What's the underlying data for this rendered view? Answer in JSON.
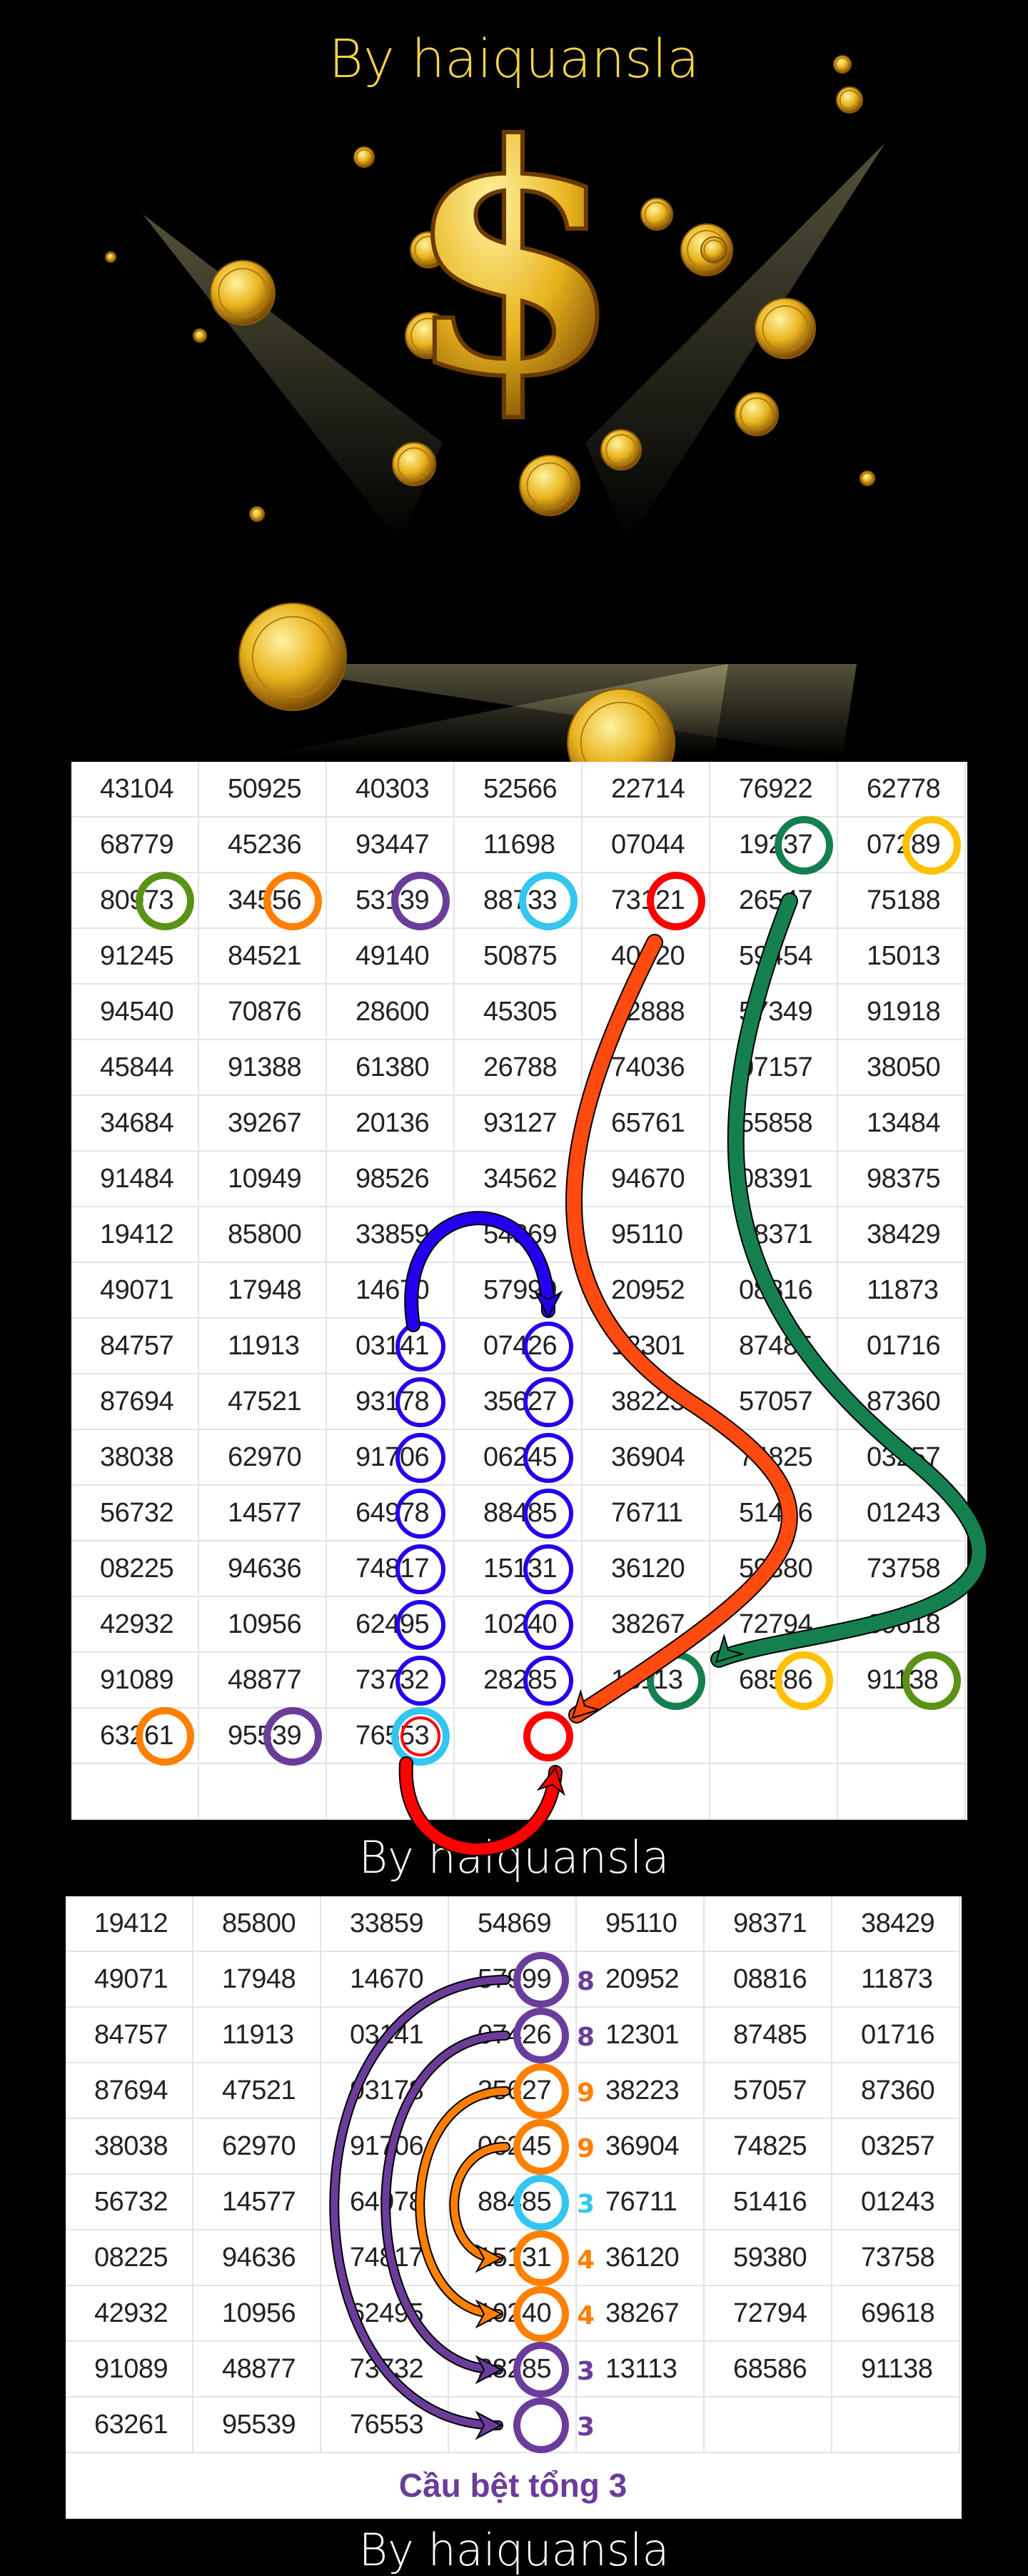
{
  "header": {
    "title": "By haiquansla",
    "symbol": "$"
  },
  "colors": {
    "title": "#f3d34a",
    "gold": "#e8b21c",
    "blue": "#2200ee",
    "orange_red": "#ff4a10",
    "dark_green": "#148050",
    "purple": "#6a3d9a",
    "orange": "#ff8000",
    "cyan": "#33c6f0",
    "red": "#ff0000",
    "yellow": "#ffc000",
    "green": "#5a9216"
  },
  "table1": {
    "rows": [
      [
        "43104",
        "50925",
        "40303",
        "52566",
        "22714",
        "76922",
        "62778"
      ],
      [
        "68779",
        "45236",
        "93447",
        "11698",
        "07044",
        "19237",
        "07289"
      ],
      [
        "80973",
        "34556",
        "53139",
        "88733",
        "73121",
        "26547",
        "75188"
      ],
      [
        "91245",
        "84521",
        "49140",
        "50875",
        "40620",
        "59454",
        "15013"
      ],
      [
        "94540",
        "70876",
        "28600",
        "45305",
        "42888",
        "57349",
        "91918"
      ],
      [
        "45844",
        "91388",
        "61380",
        "26788",
        "74036",
        "07157",
        "38050"
      ],
      [
        "34684",
        "39267",
        "20136",
        "93127",
        "65761",
        "55858",
        "13484"
      ],
      [
        "91484",
        "10949",
        "98526",
        "34562",
        "94670",
        "08391",
        "98375"
      ],
      [
        "19412",
        "85800",
        "33859",
        "54869",
        "95110",
        "98371",
        "38429"
      ],
      [
        "49071",
        "17948",
        "14670",
        "57999",
        "20952",
        "08816",
        "11873"
      ],
      [
        "84757",
        "11913",
        "03141",
        "07426",
        "12301",
        "87485",
        "01716"
      ],
      [
        "87694",
        "47521",
        "93178",
        "35627",
        "38223",
        "57057",
        "87360"
      ],
      [
        "38038",
        "62970",
        "91706",
        "06245",
        "36904",
        "74825",
        "03257"
      ],
      [
        "56732",
        "14577",
        "64978",
        "88485",
        "76711",
        "51416",
        "01243"
      ],
      [
        "08225",
        "94636",
        "74817",
        "15131",
        "36120",
        "59380",
        "73758"
      ],
      [
        "42932",
        "10956",
        "62495",
        "10240",
        "38267",
        "72794",
        "69618"
      ],
      [
        "91089",
        "48877",
        "73732",
        "28285",
        "13113",
        "68586",
        "91138"
      ],
      [
        "63261",
        "95539",
        "76553",
        "",
        "",
        "",
        ""
      ],
      [
        "",
        "",
        "",
        "",
        "",
        "",
        ""
      ]
    ]
  },
  "caption_middle": "By haiquansla",
  "table2": {
    "rows": [
      [
        "19412",
        "85800",
        "33859",
        "54869",
        "95110",
        "98371",
        "38429"
      ],
      [
        "49071",
        "17948",
        "14670",
        "57999",
        "20952",
        "08816",
        "11873"
      ],
      [
        "84757",
        "11913",
        "03141",
        "07426",
        "12301",
        "87485",
        "01716"
      ],
      [
        "87694",
        "47521",
        "93178",
        "35627",
        "38223",
        "57057",
        "87360"
      ],
      [
        "38038",
        "62970",
        "91706",
        "06245",
        "36904",
        "74825",
        "03257"
      ],
      [
        "56732",
        "14577",
        "64978",
        "88485",
        "76711",
        "51416",
        "01243"
      ],
      [
        "08225",
        "94636",
        "74817",
        "15131",
        "36120",
        "59380",
        "73758"
      ],
      [
        "42932",
        "10956",
        "62495",
        "10240",
        "38267",
        "72794",
        "69618"
      ],
      [
        "91089",
        "48877",
        "73732",
        "28285",
        "13113",
        "68586",
        "91138"
      ],
      [
        "63261",
        "95539",
        "76553",
        "",
        "",
        "",
        ""
      ]
    ],
    "sums": [
      "8",
      "8",
      "9",
      "9",
      "3",
      "4",
      "4",
      "3",
      "3"
    ],
    "footer_label": "Cầu bệt tổng 3"
  },
  "caption_bottom": "By haiquansla"
}
